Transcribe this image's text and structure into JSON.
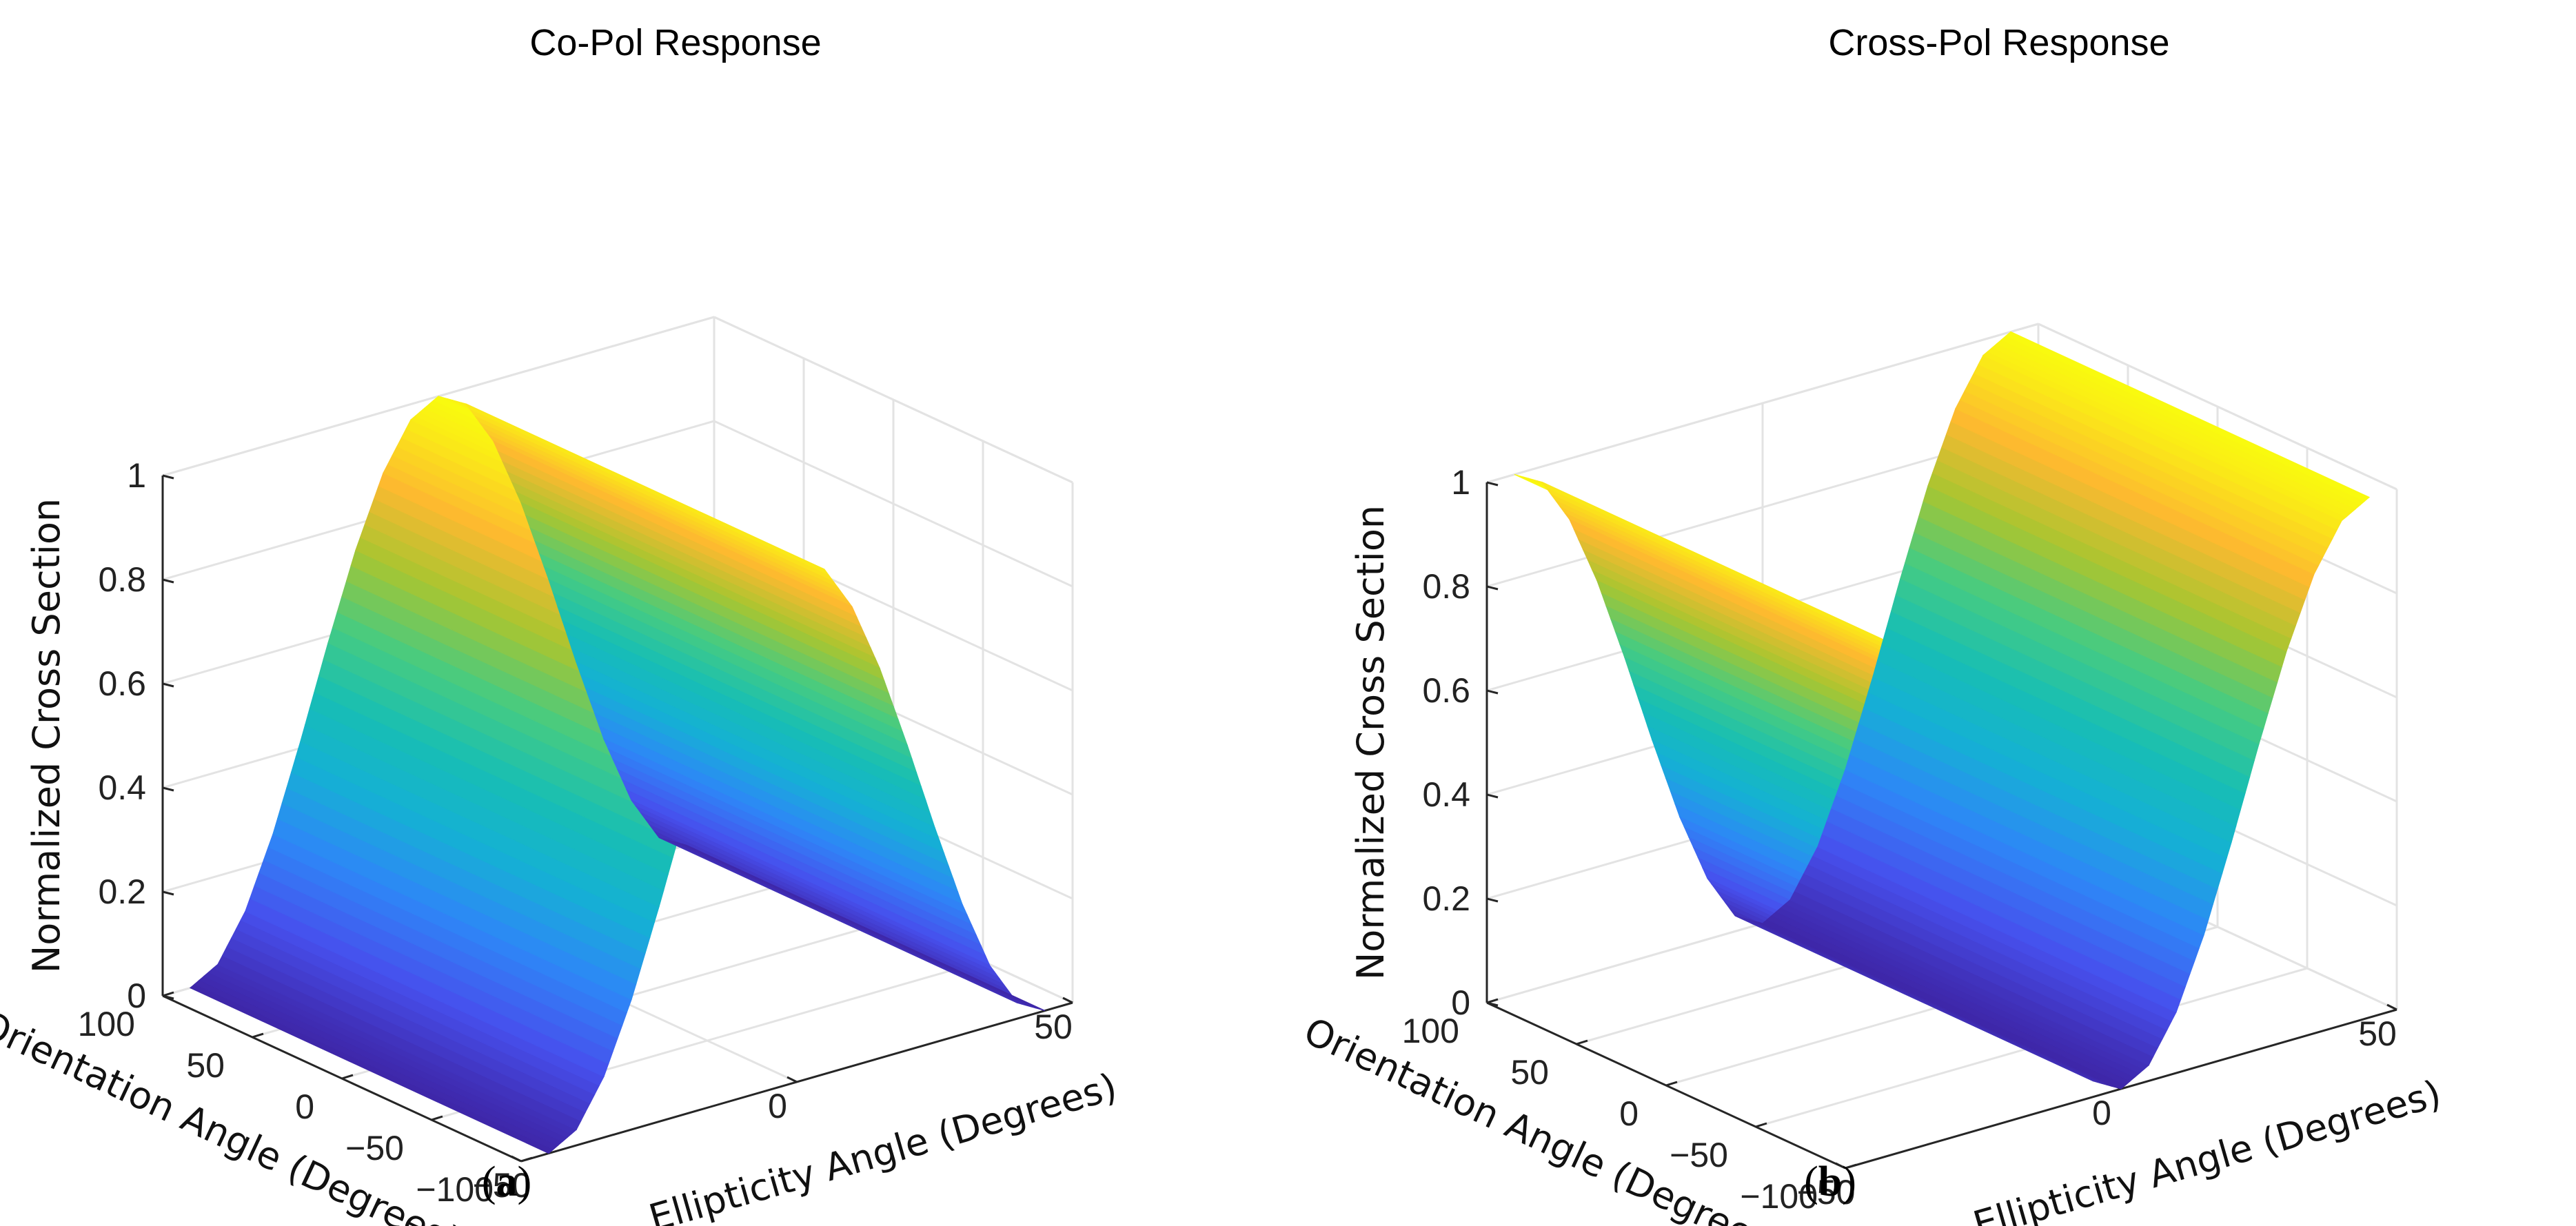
{
  "colors": {
    "grid": "#e3e3e3",
    "axis": "#262626",
    "colormap": "parula"
  },
  "chart_data": [
    {
      "type": "surface",
      "title": "Co-Pol Response",
      "caption_letter": "a",
      "caption_text": "(a)",
      "xlabel": "Ellipticity Angle (Degrees)",
      "ylabel": "Orientation Angle (Degrees)",
      "zlabel": "Normalized Cross Section",
      "xlim": [
        -50,
        50
      ],
      "ylim": [
        -100,
        100
      ],
      "zlim": [
        0,
        1
      ],
      "x_ticks": [
        -50,
        0,
        50
      ],
      "x_tick_labels": [
        "−50",
        "0",
        "50"
      ],
      "y_ticks": [
        -100,
        -50,
        0,
        50,
        100
      ],
      "y_tick_labels": [
        "−100",
        "−50",
        "0",
        "50",
        "100"
      ],
      "z_ticks": [
        0,
        0.2,
        0.4,
        0.6,
        0.8,
        1
      ],
      "z_tick_labels": [
        "0",
        "0.2",
        "0.4",
        "0.6",
        "0.8",
        "1"
      ],
      "function": "cos^2(2*ellipticity), constant along orientation",
      "x": [
        -45,
        -40,
        -35,
        -30,
        -25,
        -20,
        -15,
        -10,
        -5,
        0,
        5,
        10,
        15,
        20,
        25,
        30,
        35,
        40,
        45
      ],
      "z": [
        0.0,
        0.03,
        0.117,
        0.25,
        0.413,
        0.587,
        0.75,
        0.883,
        0.97,
        1.0,
        0.97,
        0.883,
        0.75,
        0.587,
        0.413,
        0.25,
        0.117,
        0.03,
        0.0
      ]
    },
    {
      "type": "surface",
      "title": "Cross-Pol Response",
      "caption_letter": "b",
      "caption_text": "(b)",
      "xlabel": "Ellipticity Angle (Degrees)",
      "ylabel": "Orientation Angle (Degrees)",
      "zlabel": "Normalized Cross Section",
      "xlim": [
        -50,
        50
      ],
      "ylim": [
        -100,
        100
      ],
      "zlim": [
        0,
        1
      ],
      "x_ticks": [
        -50,
        0,
        50
      ],
      "x_tick_labels": [
        "−50",
        "0",
        "50"
      ],
      "y_ticks": [
        -100,
        -50,
        0,
        50,
        100
      ],
      "y_tick_labels": [
        "−100",
        "−50",
        "0",
        "50",
        "100"
      ],
      "z_ticks": [
        0,
        0.2,
        0.4,
        0.6,
        0.8,
        1
      ],
      "z_tick_labels": [
        "0",
        "0.2",
        "0.4",
        "0.6",
        "0.8",
        "1"
      ],
      "function": "sin^2(2*ellipticity), constant along orientation",
      "x": [
        -45,
        -40,
        -35,
        -30,
        -25,
        -20,
        -15,
        -10,
        -5,
        0,
        5,
        10,
        15,
        20,
        25,
        30,
        35,
        40,
        45
      ],
      "z": [
        1.0,
        0.97,
        0.883,
        0.75,
        0.587,
        0.413,
        0.25,
        0.117,
        0.03,
        0.0,
        0.03,
        0.117,
        0.25,
        0.413,
        0.587,
        0.75,
        0.883,
        0.97,
        1.0
      ]
    }
  ]
}
